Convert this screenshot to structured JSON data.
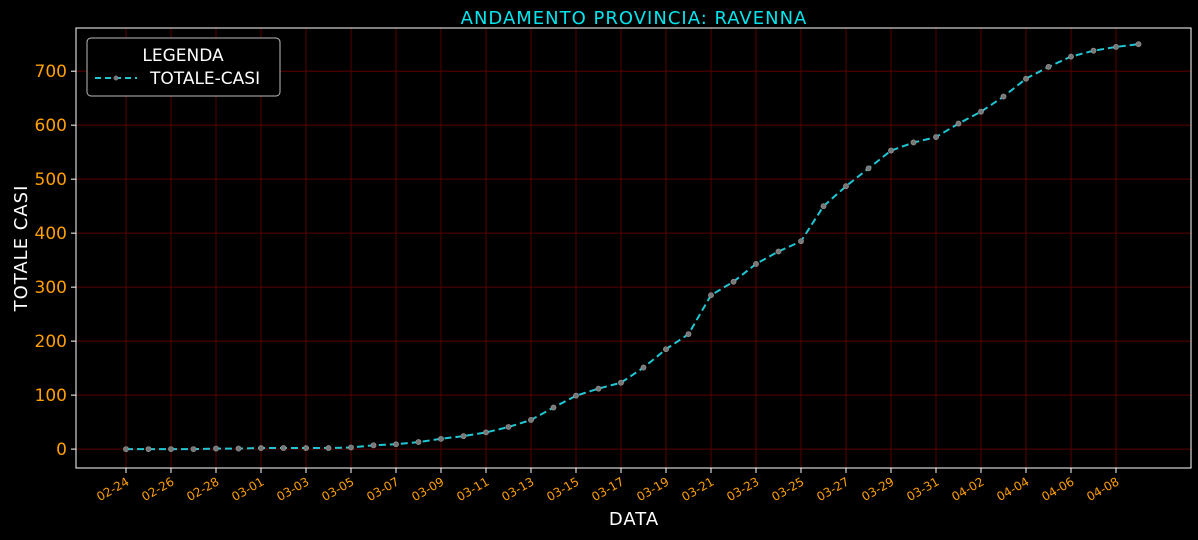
{
  "chart_data": {
    "type": "line",
    "title": "ANDAMENTO PROVINCIA: RAVENNA",
    "xlabel": "DATA",
    "ylabel": "TOTALE CASI",
    "ylim": [
      -35,
      780
    ],
    "yticks": [
      0,
      100,
      200,
      300,
      400,
      500,
      600,
      700
    ],
    "grid": true,
    "legend": {
      "title": "LEGENDA",
      "placement": "top-left"
    },
    "x": [
      "02-24",
      "02-25",
      "02-26",
      "02-27",
      "02-28",
      "02-29",
      "03-01",
      "03-02",
      "03-03",
      "03-04",
      "03-05",
      "03-06",
      "03-07",
      "03-08",
      "03-09",
      "03-10",
      "03-11",
      "03-12",
      "03-13",
      "03-14",
      "03-15",
      "03-16",
      "03-17",
      "03-18",
      "03-19",
      "03-20",
      "03-21",
      "03-22",
      "03-23",
      "03-24",
      "03-25",
      "03-26",
      "03-27",
      "03-28",
      "03-29",
      "03-30",
      "03-31",
      "04-01",
      "04-02",
      "04-03",
      "04-04",
      "04-05",
      "04-06",
      "04-07",
      "04-08",
      "04-09"
    ],
    "xtick_labels": [
      "02-24",
      "02-26",
      "02-28",
      "03-01",
      "03-03",
      "03-05",
      "03-07",
      "03-09",
      "03-11",
      "03-13",
      "03-15",
      "03-17",
      "03-19",
      "03-21",
      "03-23",
      "03-25",
      "03-27",
      "03-29",
      "03-31",
      "04-02",
      "04-04",
      "04-06",
      "04-08"
    ],
    "series": [
      {
        "name": "TOTALE-CASI",
        "color": "#1fc7d4",
        "values": [
          0,
          0,
          0,
          0,
          1,
          1,
          2,
          2,
          2,
          2,
          3,
          7,
          9,
          13,
          19,
          24,
          31,
          41,
          54,
          77,
          99,
          112,
          123,
          151,
          185,
          213,
          285,
          310,
          343,
          366,
          385,
          450,
          487,
          520,
          553,
          568,
          578,
          603,
          625,
          653,
          686,
          708,
          727,
          738,
          745,
          750
        ]
      }
    ]
  }
}
